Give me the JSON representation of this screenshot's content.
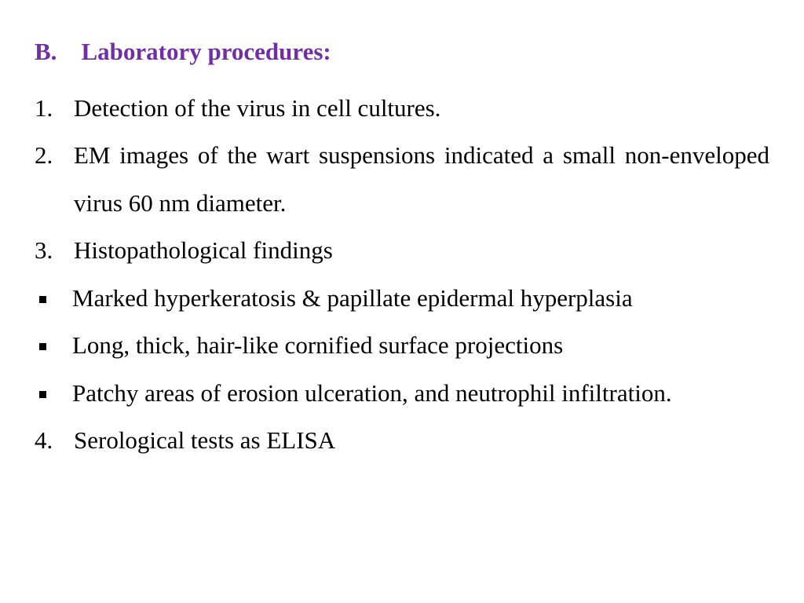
{
  "colors": {
    "heading": "#7030a0",
    "body_text": "#000000",
    "background": "#ffffff"
  },
  "typography": {
    "font_family": "Times New Roman",
    "heading_fontsize_pt": 24,
    "body_fontsize_pt": 24,
    "heading_weight": "bold",
    "line_height": 1.95
  },
  "heading": {
    "marker": "B.",
    "text": "Laboratory procedures:"
  },
  "numbered": [
    {
      "marker": "1.",
      "text": "Detection of the virus in cell cultures.",
      "justify": false
    },
    {
      "marker": "2.",
      "text": "EM images of the wart suspensions indicated a small non-enveloped virus 60 nm diameter.",
      "justify": true
    },
    {
      "marker": "3.",
      "text": "Histopathological findings",
      "justify": false
    }
  ],
  "bullets": [
    {
      "text": "Marked hyperkeratosis & papillate epidermal hyperplasia",
      "justify": false
    },
    {
      "text": "Long, thick, hair-like cornified surface projections",
      "justify": false
    },
    {
      "text": "Patchy areas of erosion ulceration, and neutrophil infiltration.",
      "justify": true
    }
  ],
  "numbered_after": [
    {
      "marker": "4.",
      "text": "Serological tests as ELISA",
      "justify": false
    }
  ]
}
